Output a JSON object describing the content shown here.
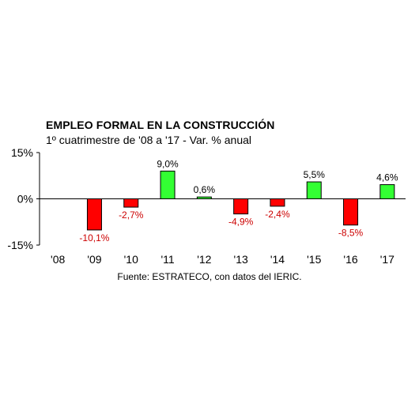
{
  "chart_data": {
    "type": "bar",
    "title": "EMPLEO FORMAL EN LA CONSTRUCCIÓN",
    "subtitle": "1º cuatrimestre de '08 a '17 - Var. % anual",
    "source": "Fuente: ESTRATECO, con datos del IERIC.",
    "categories": [
      "'08",
      "'09",
      "'10",
      "'11",
      "'12",
      "'13",
      "'14",
      "'15",
      "'16",
      "'17"
    ],
    "values": [
      null,
      -10.1,
      -2.7,
      9.0,
      0.6,
      -4.9,
      -2.4,
      5.5,
      -8.5,
      4.6
    ],
    "data_labels": [
      "",
      "-10,1%",
      "-2,7%",
      "9,0%",
      "0,6%",
      "-4,9%",
      "-2,4%",
      "5,5%",
      "-8,5%",
      "4,6%"
    ],
    "yticks": [
      "15%",
      "0%",
      "-15%"
    ],
    "ylim": [
      -15,
      15
    ],
    "grid": false,
    "colors": {
      "positive": "#33ff33",
      "negative": "#ff0000",
      "negative_label": "#cc0000",
      "axis": "#000000"
    }
  }
}
